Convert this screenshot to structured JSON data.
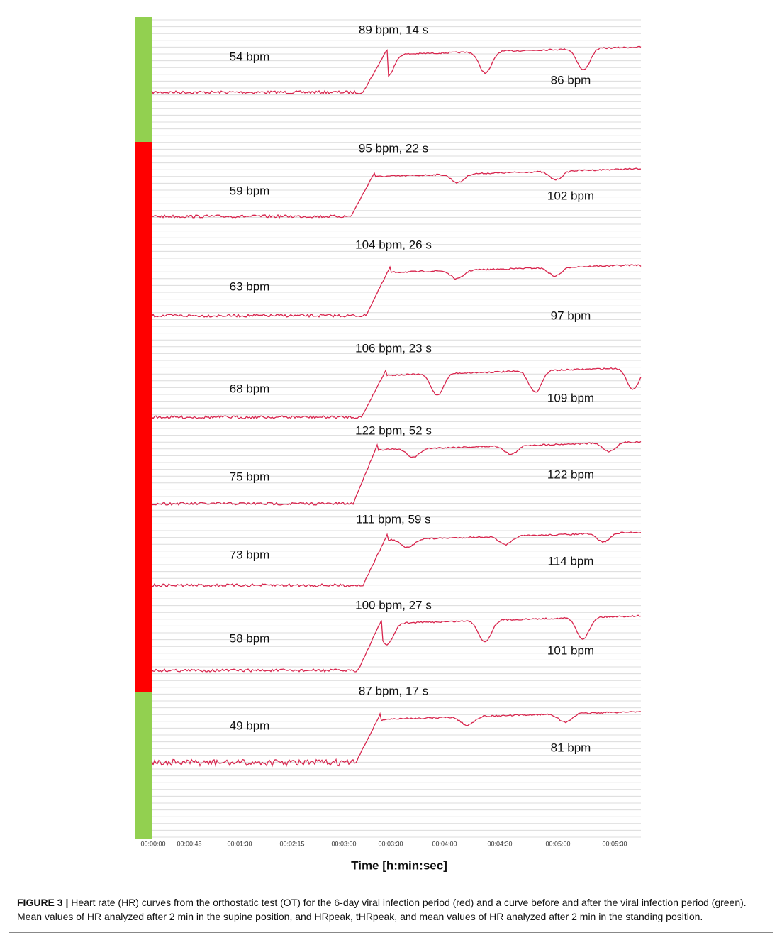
{
  "chart_data": {
    "type": "line",
    "x_label": "Time [h:min:sec]",
    "time_labels": [
      "00:00:00",
      "00:00:45",
      "00:01:30",
      "00:02:15",
      "00:03:00",
      "00:03:30",
      "00:04:00",
      "00:04:30",
      "00:05:00",
      "00:05:30"
    ],
    "line_color": "#d8264e",
    "panels": [
      {
        "color": "#92d050",
        "supine": "54 bpm",
        "peak": "89 bpm, 14 s",
        "standing": "86 bpm"
      },
      {
        "color": "#ff0000",
        "supine": "59 bpm",
        "peak": "95 bpm, 22 s",
        "standing": "102 bpm"
      },
      {
        "color": "#ff0000",
        "supine": "63 bpm",
        "peak": "104 bpm, 26 s",
        "standing": "97 bpm"
      },
      {
        "color": "#ff0000",
        "supine": "68 bpm",
        "peak": "106 bpm, 23 s",
        "standing": "109 bpm"
      },
      {
        "color": "#ff0000",
        "supine": "75 bpm",
        "peak": "122 bpm, 52 s",
        "standing": "122 bpm"
      },
      {
        "color": "#ff0000",
        "supine": "73 bpm",
        "peak": "111 bpm, 59 s",
        "standing": "114 bpm"
      },
      {
        "color": "#ff0000",
        "supine": "58 bpm",
        "peak": "100 bpm, 27 s",
        "standing": "101 bpm"
      },
      {
        "color": "#92d050",
        "supine": "49 bpm",
        "peak": "87 bpm, 17 s",
        "standing": "81 bpm"
      }
    ]
  },
  "caption": {
    "label": "FIGURE 3 |",
    "text": "Heart rate (HR) curves from the orthostatic test (OT) for the 6-day viral infection period (red) and a curve before and after the viral infection period (green). Mean values of HR analyzed after 2 min in the supine position, and HRpeak, tHRpeak, and mean values of HR analyzed after 2 min in the standing position."
  }
}
